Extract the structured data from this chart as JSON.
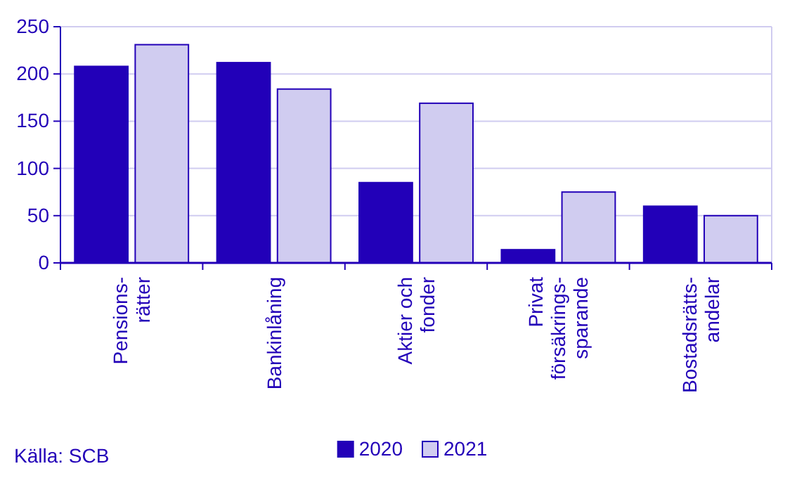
{
  "chart_data": {
    "type": "bar",
    "categories": [
      "Pensions-\nrätter",
      "Bankinlåning",
      "Aktier och\nfonder",
      "Privat\nförsäkrings-\nsparande",
      "Bostadsrätts-\nandelar"
    ],
    "series": [
      {
        "name": "2020",
        "color": "#2200b8",
        "values": [
          208,
          212,
          85,
          14,
          60
        ]
      },
      {
        "name": "2021",
        "color": "#d0ccf0",
        "values": [
          231,
          184,
          169,
          75,
          50
        ]
      }
    ],
    "ylim": [
      0,
      250
    ],
    "yticks": [
      0,
      50,
      100,
      150,
      200,
      250
    ],
    "grid": "y",
    "legend": "bottom",
    "annotations": [
      "Källa: SCB"
    ]
  }
}
